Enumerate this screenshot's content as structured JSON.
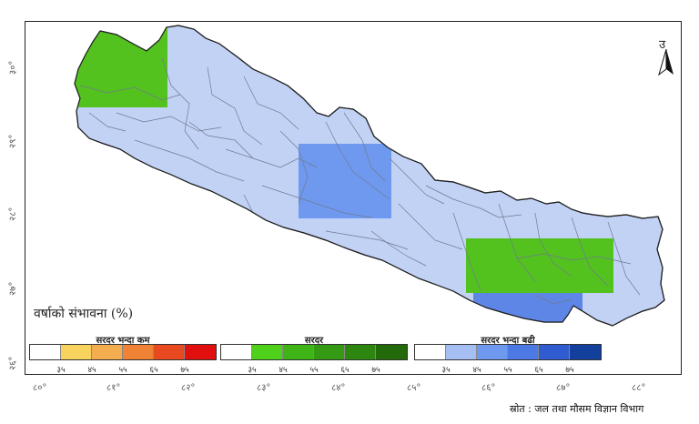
{
  "map": {
    "north_label": "उ",
    "latitude_labels": [
      "३०°",
      "२९°",
      "२८°",
      "२७°",
      "२६°"
    ],
    "longitude_labels": [
      "८०°",
      "८१°",
      "८२°",
      "८३°",
      "८४°",
      "८५°",
      "८६°",
      "८७°",
      "८८°"
    ],
    "colors": {
      "country_fill": "#c1d2f5",
      "district_border": "#6f7a8f",
      "normal_region": "#53c21f",
      "above_normal_region": "#6f99ef",
      "above_normal_deep": "#5e86e6"
    },
    "highlighted_regions": [
      {
        "category": "सरदर",
        "area": "far-west"
      },
      {
        "category": "सरदर भन्दा बढी",
        "area": "central"
      },
      {
        "category": "सरदर",
        "area": "east"
      },
      {
        "category": "सरदर भन्दा बढी",
        "area": "south-east"
      }
    ]
  },
  "legend": {
    "title": "वर्षाको संभावना (%)",
    "groups": [
      {
        "heading": "सरदर भन्दा कम",
        "colors": [
          "#ffffff",
          "#f8d35e",
          "#f3ad4f",
          "#ef8235",
          "#e8491e",
          "#e20f0f"
        ],
        "ticks": [
          "३५",
          "४५",
          "५५",
          "६५",
          "७५"
        ]
      },
      {
        "heading": "सरदर",
        "colors": [
          "#ffffff",
          "#4fd01a",
          "#3fb417",
          "#359a13",
          "#2d8610",
          "#236b0a"
        ],
        "ticks": [
          "३५",
          "४५",
          "५५",
          "६५",
          "७५"
        ]
      },
      {
        "heading": "सरदर भन्दा बढी",
        "colors": [
          "#ffffff",
          "#a6bff3",
          "#6f99ef",
          "#4c79e4",
          "#2f5cd0",
          "#12409c"
        ],
        "ticks": [
          "३५",
          "४५",
          "५५",
          "६५",
          "७५"
        ]
      }
    ]
  },
  "source": "स्रोत : जल तथा मौसम विज्ञान विभाग"
}
